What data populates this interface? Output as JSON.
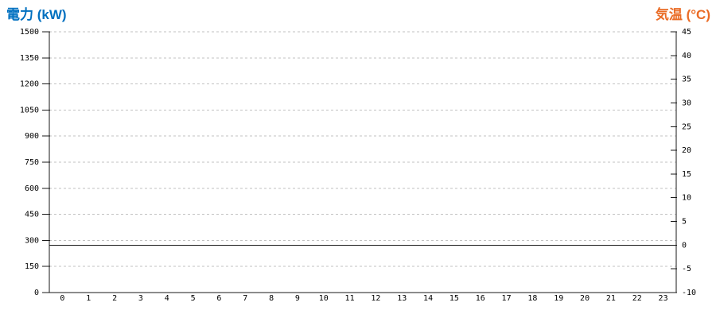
{
  "titles": {
    "left": "電力 (kW)",
    "right": "気温 (°C)"
  },
  "colors": {
    "power_title": "#0070C0",
    "temperature_title": "#EA6B25",
    "axis_line": "#1A1A1A",
    "gridline": "#C2C2C2",
    "zero_line": "#1A1A1A",
    "tick_label": "#000000",
    "background": "#FFFFFF"
  },
  "chart_data": {
    "type": "line",
    "title": "",
    "x_axis": {
      "tick_labels": [
        "0",
        "1",
        "2",
        "3",
        "4",
        "5",
        "6",
        "7",
        "8",
        "9",
        "10",
        "11",
        "12",
        "13",
        "14",
        "15",
        "16",
        "17",
        "18",
        "19",
        "20",
        "21",
        "22",
        "23"
      ]
    },
    "left_y_axis": {
      "title": "電力 (kW)",
      "unit": "kW",
      "min": 0,
      "max": 1500,
      "step": 150,
      "tick_labels": [
        "1500",
        "1350",
        "1200",
        "1050",
        "900",
        "750",
        "600",
        "450",
        "300",
        "150",
        "0"
      ]
    },
    "right_y_axis": {
      "title": "気温 (°C)",
      "unit": "°C",
      "min": -10,
      "max": 45,
      "step": 5,
      "tick_labels": [
        "45",
        "40",
        "35",
        "30",
        "25",
        "20",
        "15",
        "10",
        "5",
        "0",
        "-5",
        "-10"
      ]
    },
    "series": [
      {
        "name": "電力",
        "axis": "left",
        "values": []
      },
      {
        "name": "気温",
        "axis": "right",
        "values": []
      }
    ],
    "annotations": [
      {
        "type": "reference_line",
        "axis": "right",
        "value": 0
      }
    ],
    "grid": {
      "horizontal": "dashed",
      "vertical": "none"
    },
    "legend": "none"
  }
}
